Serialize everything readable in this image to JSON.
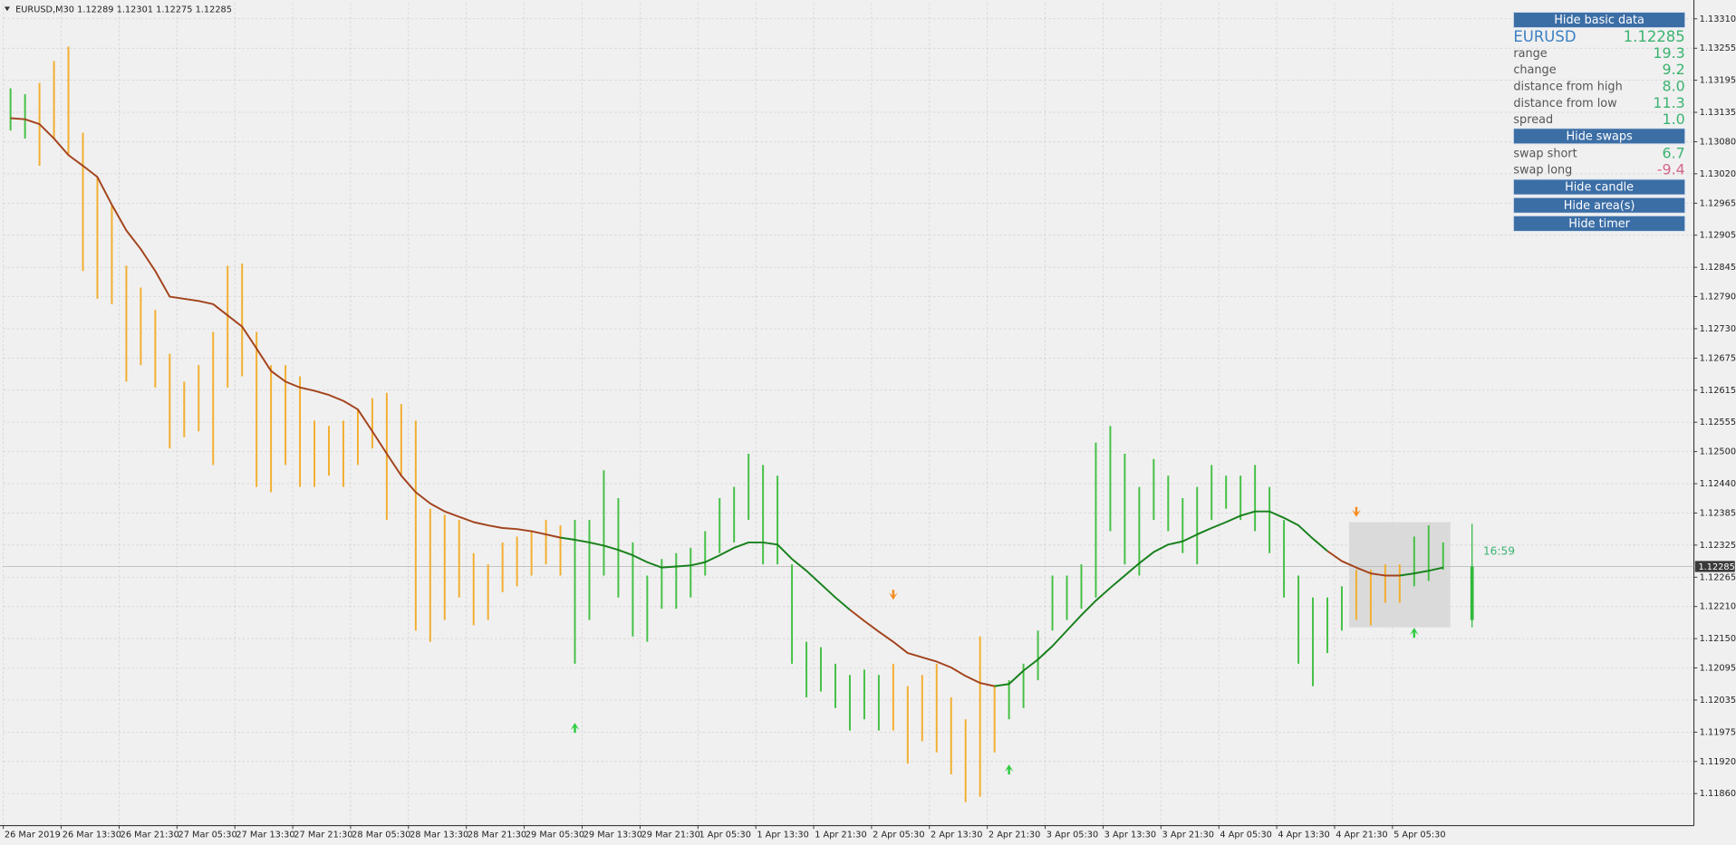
{
  "chart_data": {
    "type": "ohlc",
    "title": "EURUSD,M30  1.12289 1.12301 1.12275 1.12285",
    "ylim": [
      1.118,
      1.13339
    ],
    "yticks": [
      {
        "value": 1.1331,
        "label": "1.13310"
      },
      1.13255,
      1.13195,
      1.13135,
      {
        "value": 1.1308,
        "label": "1.13080"
      },
      {
        "value": 1.1302,
        "label": "1.13020"
      },
      1.12965,
      1.12905,
      1.12845,
      {
        "value": 1.1279,
        "label": "1.12790"
      },
      {
        "value": 1.1273,
        "label": "1.12730"
      },
      1.12675,
      1.12615,
      1.12555,
      {
        "value": 1.125,
        "label": "1.12500"
      },
      {
        "value": 1.1244,
        "label": "1.12440"
      },
      1.12385,
      1.12325,
      1.12265,
      {
        "value": 1.1221,
        "label": "1.12210"
      },
      {
        "value": 1.1215,
        "label": "1.12150"
      },
      1.12095,
      1.12035,
      1.11975,
      {
        "value": 1.1192,
        "label": "1.11920"
      },
      {
        "value": 1.1186,
        "label": "1.11860"
      }
    ],
    "grid": true,
    "categories": [
      "26 Mar 2019",
      null,
      null,
      null,
      "26 Mar 13:30",
      null,
      null,
      null,
      "26 Mar 21:30",
      null,
      null,
      null,
      "27 Mar 05:30",
      null,
      null,
      null,
      "27 Mar 13:30",
      null,
      null,
      null,
      "27 Mar 21:30",
      null,
      null,
      null,
      "28 Mar 05:30",
      null,
      null,
      null,
      "28 Mar 13:30",
      null,
      null,
      null,
      "28 Mar 21:30",
      null,
      null,
      null,
      "29 Mar 05:30",
      null,
      null,
      null,
      "29 Mar 13:30",
      null,
      null,
      null,
      "29 Mar 21:30",
      null,
      null,
      null,
      "1 Apr 05:30",
      null,
      null,
      null,
      "1 Apr 13:30",
      null,
      null,
      null,
      "1 Apr 21:30",
      null,
      null,
      null,
      "2 Apr 05:30",
      null,
      null,
      null,
      "2 Apr 13:30",
      null,
      null,
      null,
      "2 Apr 21:30",
      null,
      null,
      null,
      "3 Apr 05:30",
      null,
      null,
      null,
      "3 Apr 13:30",
      null,
      null,
      null,
      "3 Apr 21:30",
      null,
      null,
      null,
      "4 Apr 05:30",
      null,
      null,
      null,
      "4 Apr 13:30",
      null,
      null,
      null,
      "4 Apr 21:30",
      null,
      null,
      null,
      "5 Apr 05:30",
      null,
      null,
      null
    ],
    "series": [
      {
        "color": "#44c044",
        "high": [
          1.1318,
          1.13169,
          null,
          null,
          null,
          null,
          null,
          null,
          null,
          null,
          null,
          null,
          null,
          null,
          null,
          null,
          null,
          null,
          null,
          null,
          null,
          null,
          null,
          null,
          null,
          null,
          null,
          null,
          null,
          null,
          null,
          null,
          null,
          null,
          null,
          null,
          null,
          null,
          null,
          1.12372,
          1.12372,
          1.12465,
          1.12413,
          1.1233,
          1.12268,
          1.12299,
          1.1231,
          1.1232,
          1.12351,
          1.12413,
          1.12434,
          1.12496,
          1.12475,
          1.12455,
          1.12289,
          1.12144,
          1.12134,
          1.12103,
          1.12082,
          1.12092,
          1.12082,
          null,
          null,
          null,
          null,
          null,
          null,
          null,
          null,
          1.12072,
          1.12103,
          1.12165,
          1.12268,
          1.12268,
          1.12289,
          1.12517,
          1.12548,
          1.12496,
          1.12434,
          1.12486,
          1.12455,
          1.12413,
          1.12434,
          1.12475,
          1.12455,
          1.12455,
          1.12475,
          1.12434,
          1.12372,
          1.12268,
          1.12227,
          1.12227,
          1.12248,
          null,
          null,
          null,
          null,
          1.12341,
          1.12362,
          1.1233
        ],
        "low": [
          1.13101,
          1.13086,
          null,
          null,
          null,
          null,
          null,
          null,
          null,
          null,
          null,
          null,
          null,
          null,
          null,
          null,
          null,
          null,
          null,
          null,
          null,
          null,
          null,
          null,
          null,
          null,
          null,
          null,
          null,
          null,
          null,
          null,
          null,
          null,
          null,
          null,
          null,
          null,
          null,
          1.12103,
          1.12185,
          1.12268,
          1.12227,
          1.12154,
          1.12144,
          1.12206,
          1.12206,
          1.12227,
          1.12268,
          1.1231,
          1.1233,
          1.12372,
          1.12289,
          1.12289,
          1.12103,
          1.1204,
          1.12051,
          1.1202,
          1.11978,
          1.11999,
          1.11978,
          null,
          null,
          null,
          null,
          null,
          null,
          null,
          null,
          1.11999,
          1.1202,
          1.12072,
          1.12165,
          1.12185,
          1.12206,
          1.12227,
          1.12351,
          1.12289,
          1.12268,
          1.12372,
          1.12351,
          1.1231,
          1.12289,
          1.12372,
          1.12393,
          1.12372,
          1.12351,
          1.1231,
          1.12227,
          1.12103,
          1.12061,
          1.12123,
          1.12165,
          null,
          null,
          null,
          null,
          1.12248,
          1.12258,
          1.12279
        ]
      },
      {
        "color": "#f2ae2e",
        "high": [
          null,
          null,
          1.1319,
          1.13231,
          1.13258,
          1.13097,
          1.13014,
          1.12962,
          1.12848,
          1.12807,
          1.12765,
          1.12683,
          1.12631,
          1.12662,
          1.12724,
          1.12848,
          1.12852,
          1.12724,
          1.12662,
          1.12662,
          1.12641,
          1.12558,
          1.12548,
          1.12558,
          1.12579,
          1.126,
          1.1261,
          1.12589,
          1.12558,
          1.12393,
          1.12382,
          1.12372,
          1.1231,
          1.12289,
          1.1233,
          1.12341,
          1.12351,
          1.12372,
          1.12362,
          null,
          null,
          null,
          null,
          null,
          null,
          null,
          null,
          null,
          null,
          null,
          null,
          null,
          null,
          null,
          null,
          null,
          null,
          null,
          null,
          null,
          null,
          1.12103,
          1.12061,
          1.12082,
          1.12103,
          1.1204,
          1.11999,
          1.12154,
          1.12061,
          null,
          null,
          null,
          null,
          null,
          null,
          null,
          null,
          null,
          null,
          null,
          null,
          null,
          null,
          null,
          null,
          null,
          null,
          null,
          null,
          null,
          null,
          null,
          null,
          1.12279,
          1.12279,
          1.12289,
          1.12289,
          null,
          null,
          null
        ],
        "low": [
          null,
          null,
          1.13035,
          1.13086,
          1.13055,
          1.12838,
          1.12786,
          1.12776,
          1.12631,
          1.12662,
          1.1262,
          1.12506,
          1.12527,
          1.12538,
          1.12475,
          1.1262,
          1.12641,
          1.12434,
          1.12424,
          1.12475,
          1.12434,
          1.12434,
          1.12455,
          1.12434,
          1.12475,
          1.12506,
          1.12372,
          1.12455,
          1.12165,
          1.12144,
          1.12185,
          1.12227,
          1.12175,
          1.12185,
          1.12237,
          1.12248,
          1.12268,
          1.12289,
          1.12268,
          null,
          null,
          null,
          null,
          null,
          null,
          null,
          null,
          null,
          null,
          null,
          null,
          null,
          null,
          null,
          null,
          null,
          null,
          null,
          null,
          null,
          null,
          1.11978,
          1.11916,
          1.11958,
          1.11937,
          1.11896,
          1.11844,
          1.11854,
          1.11937,
          null,
          null,
          null,
          null,
          null,
          null,
          null,
          null,
          null,
          null,
          null,
          null,
          null,
          null,
          null,
          null,
          null,
          null,
          null,
          null,
          null,
          null,
          null,
          null,
          1.12185,
          1.12175,
          1.12217,
          1.12217,
          null,
          null,
          null
        ]
      }
    ],
    "moving_average": [
      {
        "color": "#a3431c",
        "values": [
          1.13124,
          1.13122,
          1.13113,
          1.13086,
          1.13055,
          1.13035,
          1.13014,
          1.12962,
          1.12914,
          1.12879,
          1.12838,
          1.1279,
          1.12786,
          1.12782,
          1.12776,
          1.12755,
          1.12734,
          1.12693,
          1.12651,
          1.12631,
          1.1262,
          1.12614,
          1.12606,
          1.12595,
          1.12579,
          1.12538,
          1.12496,
          1.12455,
          1.12424,
          1.12403,
          1.12388,
          1.12378,
          1.12368,
          1.12362,
          1.12357,
          1.12355,
          1.12351,
          1.12345,
          1.12339,
          null,
          null,
          null,
          null,
          null,
          null,
          null,
          null,
          null,
          null,
          null,
          null,
          null,
          null,
          null,
          null,
          null,
          null,
          null,
          1.12204,
          1.12183,
          1.12163,
          1.12144,
          1.12123,
          1.12115,
          1.12107,
          1.12096,
          1.1208,
          1.12067,
          1.12061,
          null,
          null,
          null,
          null,
          null,
          null,
          null,
          null,
          null,
          null,
          null,
          null,
          null,
          null,
          null,
          null,
          null,
          null,
          null,
          null,
          null,
          null,
          1.12314,
          1.12295,
          1.12283,
          1.12272,
          1.12268,
          1.12268,
          null,
          null,
          null
        ]
      },
      {
        "color": "#18801c",
        "values": [
          null,
          null,
          null,
          null,
          null,
          null,
          null,
          null,
          null,
          null,
          null,
          null,
          null,
          null,
          null,
          null,
          null,
          null,
          null,
          null,
          null,
          null,
          null,
          null,
          null,
          null,
          null,
          null,
          null,
          null,
          null,
          null,
          null,
          null,
          null,
          null,
          null,
          null,
          1.12339,
          1.12335,
          1.1233,
          1.12324,
          1.12316,
          1.12306,
          1.12293,
          1.12283,
          1.12285,
          1.12287,
          1.12293,
          1.12306,
          1.1232,
          1.1233,
          1.1233,
          1.12326,
          1.12299,
          1.12277,
          1.12252,
          1.12227,
          1.12204,
          null,
          null,
          null,
          null,
          null,
          null,
          null,
          null,
          null,
          1.12061,
          1.12065,
          1.1209,
          1.12111,
          1.12136,
          1.12165,
          1.12194,
          1.12221,
          1.12245,
          1.12268,
          1.12291,
          1.12312,
          1.12326,
          1.12332,
          1.12345,
          1.12357,
          1.12368,
          1.1238,
          1.12388,
          1.12388,
          1.12376,
          1.12362,
          1.12337,
          1.12314,
          null,
          null,
          null,
          null,
          1.12268,
          1.12272,
          1.12277,
          1.12283
        ]
      }
    ],
    "signals": [
      {
        "color": "#f58a1f",
        "direction": "down",
        "values": [
          null,
          null,
          null,
          null,
          null,
          null,
          null,
          null,
          null,
          null,
          null,
          null,
          null,
          null,
          null,
          null,
          null,
          null,
          null,
          null,
          null,
          null,
          null,
          null,
          null,
          null,
          null,
          null,
          null,
          null,
          null,
          null,
          null,
          null,
          null,
          null,
          null,
          null,
          null,
          null,
          null,
          null,
          null,
          null,
          null,
          null,
          null,
          null,
          null,
          null,
          null,
          null,
          null,
          null,
          null,
          null,
          null,
          null,
          null,
          null,
          null,
          1.12231,
          null,
          null,
          null,
          null,
          null,
          null,
          null,
          null,
          null,
          null,
          null,
          null,
          null,
          null,
          null,
          null,
          null,
          null,
          null,
          null,
          null,
          null,
          null,
          null,
          null,
          null,
          null,
          null,
          null,
          null,
          null,
          1.12386,
          null,
          null,
          null,
          null,
          null,
          null
        ]
      },
      {
        "color": "#2ecc40",
        "direction": "up",
        "values": [
          null,
          null,
          null,
          null,
          null,
          null,
          null,
          null,
          null,
          null,
          null,
          null,
          null,
          null,
          null,
          null,
          null,
          null,
          null,
          null,
          null,
          null,
          null,
          null,
          null,
          null,
          null,
          null,
          null,
          null,
          null,
          null,
          null,
          null,
          null,
          null,
          null,
          null,
          null,
          1.11984,
          null,
          null,
          null,
          null,
          null,
          null,
          null,
          null,
          null,
          null,
          null,
          null,
          null,
          null,
          null,
          null,
          null,
          null,
          null,
          null,
          null,
          null,
          null,
          null,
          null,
          null,
          null,
          null,
          null,
          1.11906,
          null,
          null,
          null,
          null,
          null,
          null,
          null,
          null,
          null,
          null,
          null,
          null,
          null,
          null,
          null,
          null,
          null,
          null,
          null,
          null,
          null,
          null,
          null,
          null,
          null,
          null,
          null,
          1.12162,
          null,
          null
        ]
      }
    ],
    "area": {
      "color": "#d6d6d6",
      "x": [
        93,
        100
      ],
      "low": 1.12171,
      "high": 1.12368
    },
    "current_price": 1.12285,
    "candle": {
      "color": "#2fb83a",
      "open": 1.12185,
      "high": 1.12365,
      "low": 1.12171,
      "close": 1.12285
    },
    "timer": "16:59"
  },
  "panel": {
    "basic_button": "Hide basic data",
    "symbol": "EURUSD",
    "price": "1.12285",
    "rows": [
      [
        "range",
        "19.3"
      ],
      [
        "change",
        "9.2"
      ],
      [
        "distance from high",
        "8.0"
      ],
      [
        "distance from low",
        "11.3"
      ],
      [
        "spread",
        "1.0"
      ]
    ],
    "swaps_button": "Hide swaps",
    "swap_rows": [
      [
        "swap short",
        "6.7",
        "#3cb371"
      ],
      [
        "swap long",
        "-9.4",
        "#d4668a"
      ]
    ],
    "buttons": [
      "Hide candle",
      "Hide area(s)",
      "Hide timer"
    ]
  }
}
